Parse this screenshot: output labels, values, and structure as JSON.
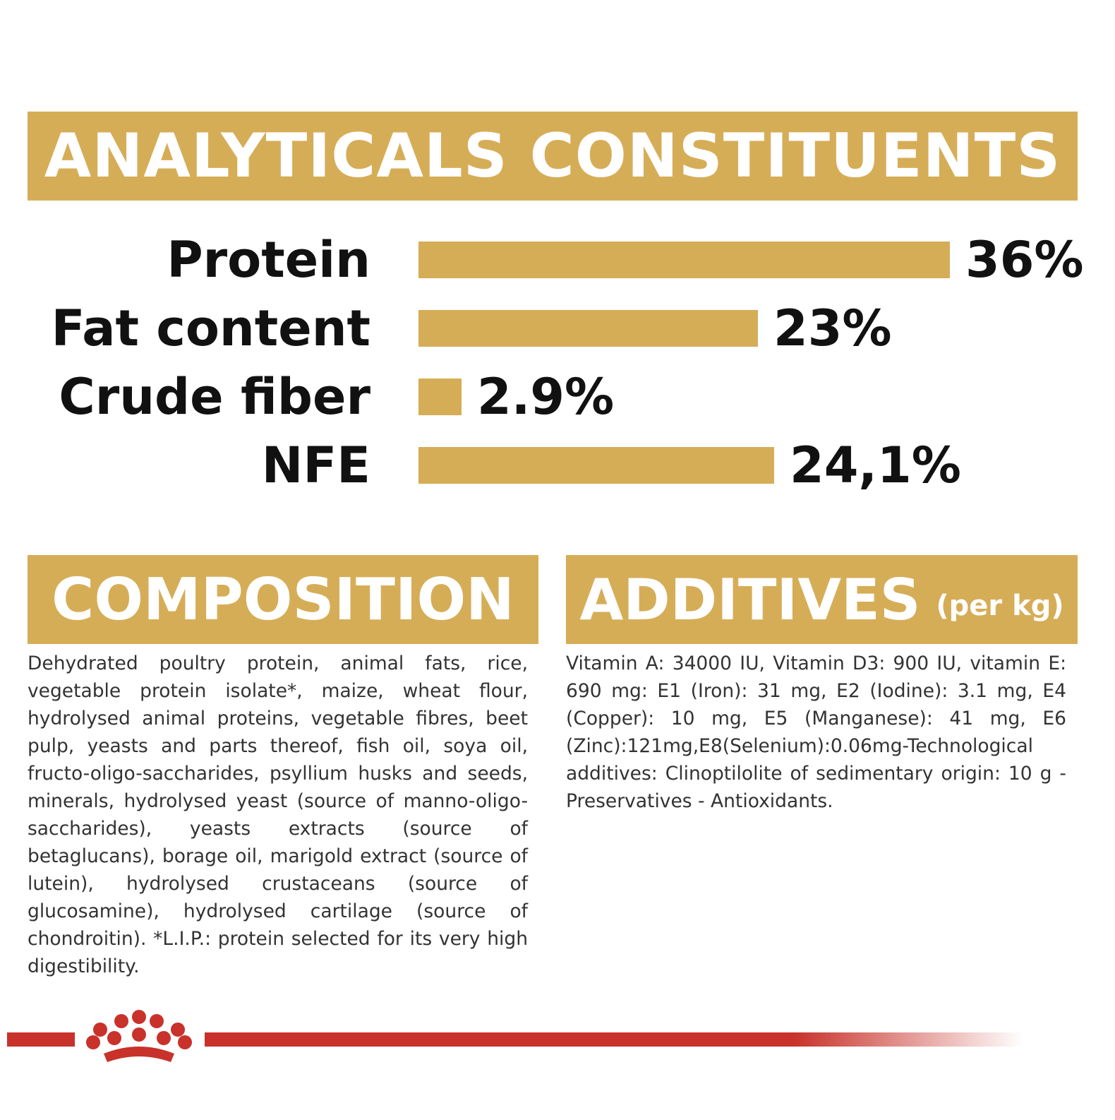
{
  "analytics": {
    "title": "ANALYTICALS CONSTITUENTS"
  },
  "chart_data": {
    "type": "bar",
    "orientation": "horizontal",
    "categories": [
      "Protein",
      "Fat content",
      "Crude fiber",
      "NFE"
    ],
    "values": [
      36,
      23,
      2.9,
      24.1
    ],
    "value_labels": [
      "36%",
      "23%",
      "2.9%",
      "24,1%"
    ],
    "unit": "%",
    "xlim": [
      0,
      36
    ],
    "bar_color": "#d6ad57",
    "grid": false,
    "legend": "none"
  },
  "composition": {
    "title": "COMPOSITION",
    "text": "Dehydrated poultry protein, animal fats, rice, vegetable protein isolate*, maize, wheat flour, hydrolysed animal proteins, vegetable fibres, beet pulp, yeasts and parts thereof, fish oil, soya oil, fructo-oligo-saccharides, psyllium husks and seeds, minerals, hydrolysed yeast (source of manno-oligo-saccharides), yeasts extracts (source of betaglucans), borage oil, marigold extract (source of lutein), hydrolysed crustaceans (source of glucosamine), hydrolysed cartilage (source of chondroitin). *L.I.P.: protein selected for its very high digestibility."
  },
  "additives": {
    "title": "ADDITIVES",
    "subtitle": "(per kg)",
    "text": "Vitamin A: 34000 IU, Vitamin D3: 900 IU, vitamin E: 690 mg: E1 (Iron): 31 mg, E2 (Iodine): 3.1 mg, E4 (Copper): 10 mg, E5 (Manganese): 41 mg, E6 (Zinc):121mg,E8(Selenium):0.06mg-Technological additives: Clinoptilolite of sedimentary origin: 10 g - Preservatives - Antioxidants."
  },
  "colors": {
    "gold": "#d6ad57",
    "brand_red": "#c8322b",
    "text_dark": "#111111",
    "text_body": "#333333"
  },
  "icons": {
    "logo": "crown-logo-icon"
  }
}
